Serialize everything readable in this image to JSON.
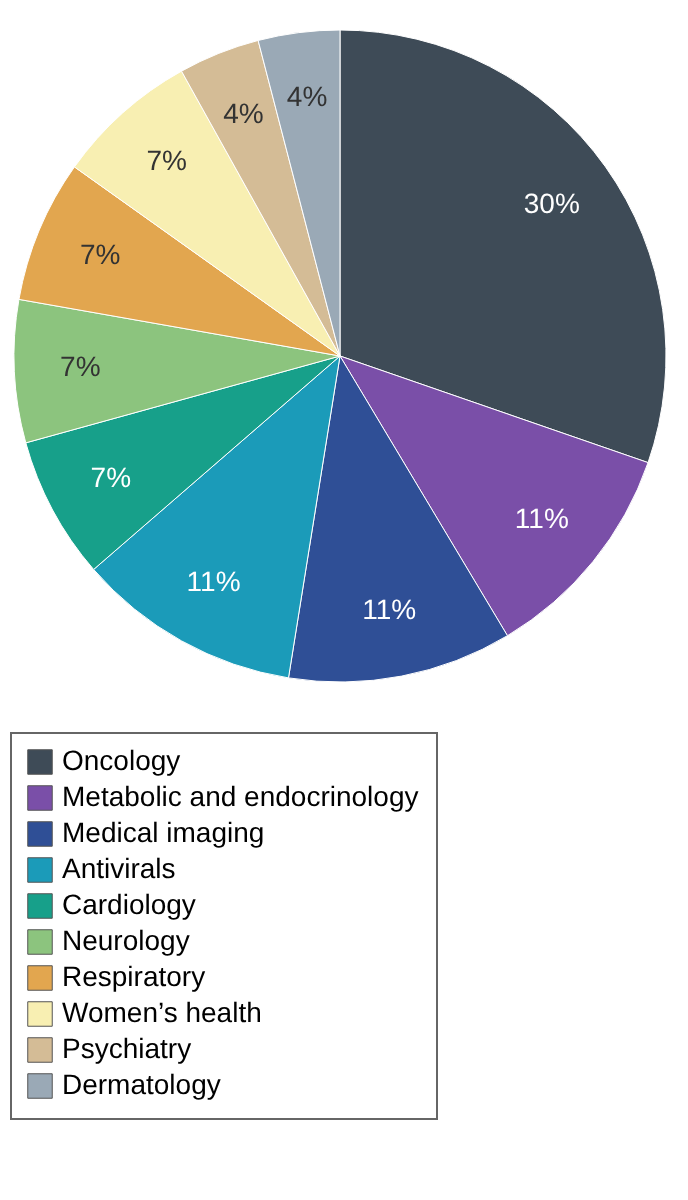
{
  "chart_data": {
    "type": "pie",
    "categories": [
      "Oncology",
      "Metabolic and endocrinology",
      "Medical imaging",
      "Antivirals",
      "Cardiology",
      "Neurology",
      "Respiratory",
      "Women’s health",
      "Psychiatry",
      "Dermatology"
    ],
    "values": [
      30,
      11,
      11,
      11,
      7,
      7,
      7,
      7,
      4,
      4
    ],
    "value_labels": [
      "30%",
      "11%",
      "11%",
      "11%",
      "7%",
      "7%",
      "7%",
      "7%",
      "4%",
      "4%"
    ],
    "colors": [
      "#3e4b57",
      "#7a4fa8",
      "#2f4f96",
      "#1b9bb9",
      "#17a08a",
      "#8cc47e",
      "#e2a64f",
      "#f8efb2",
      "#d4bc96",
      "#9aa9b6"
    ],
    "legend": "bottom"
  }
}
